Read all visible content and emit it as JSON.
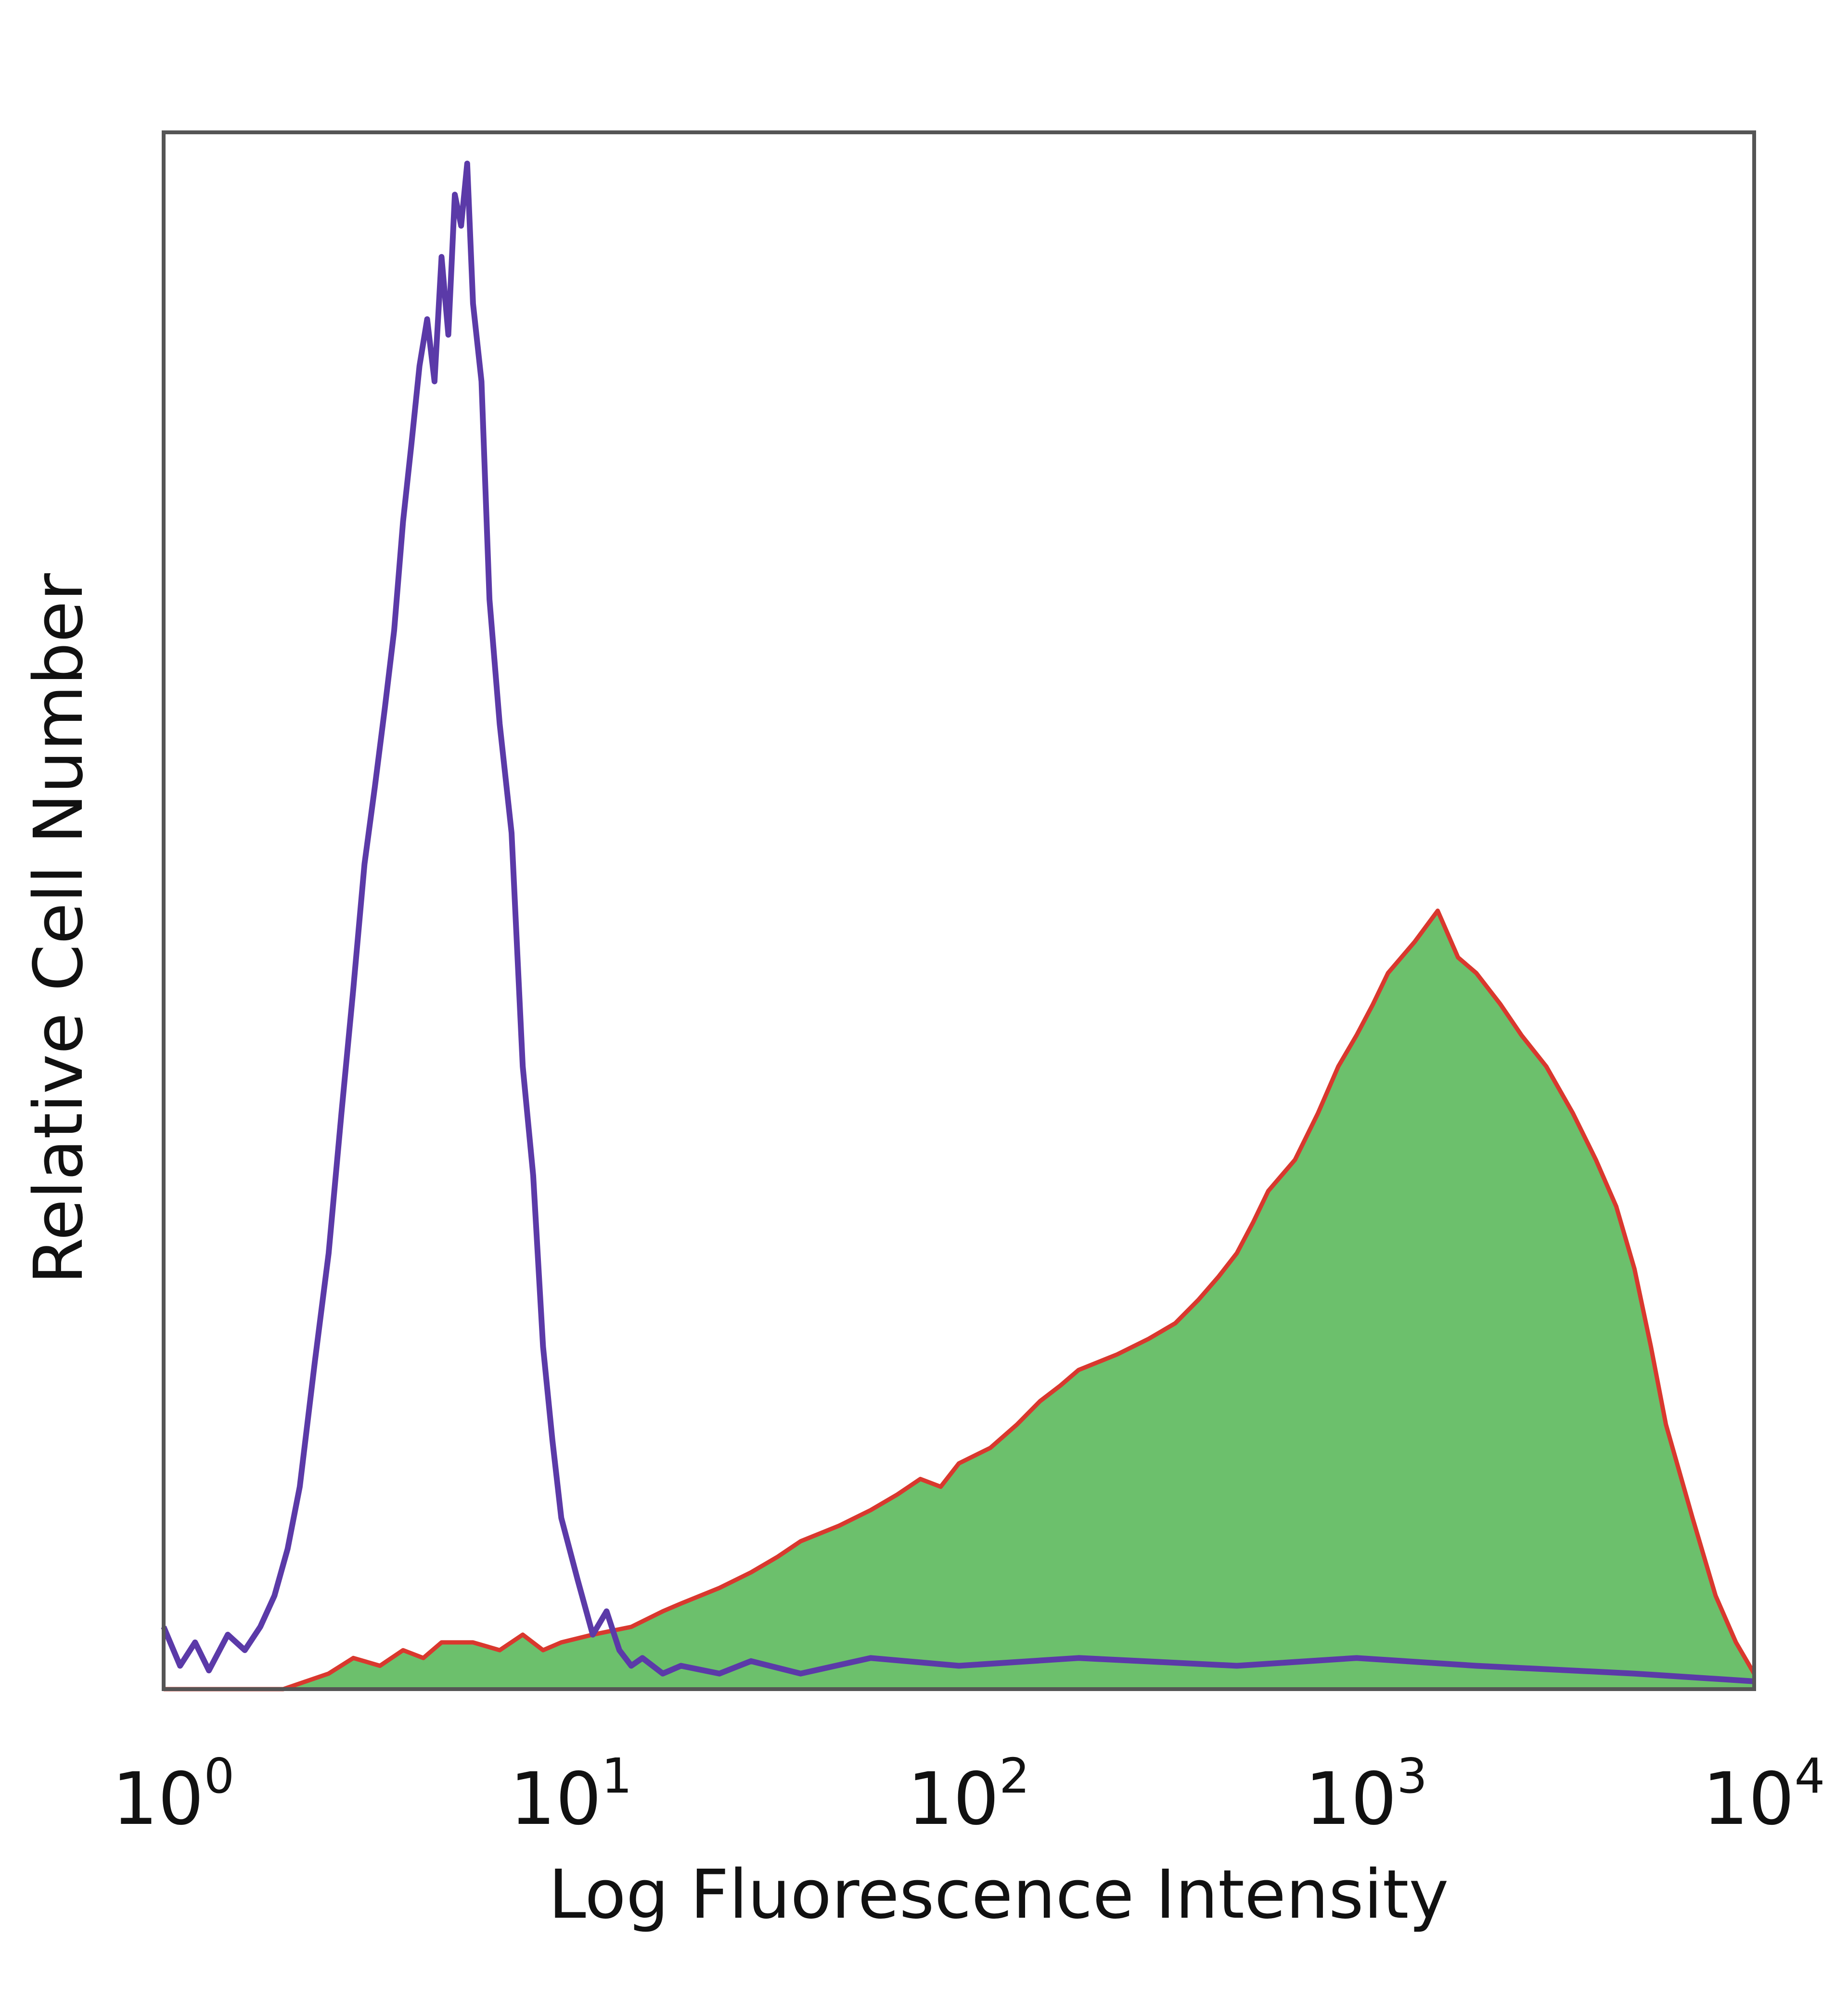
{
  "chart_data": {
    "type": "area",
    "xlabel": "Log Fluorescence Intensity",
    "ylabel": "Relative Cell Number",
    "x_scale": "log",
    "xlim": [
      1,
      10000
    ],
    "ylim": [
      0,
      100
    ],
    "x_ticks": [
      {
        "base": "10",
        "exp": "0",
        "value": 1
      },
      {
        "base": "10",
        "exp": "1",
        "value": 10
      },
      {
        "base": "10",
        "exp": "2",
        "value": 100
      },
      {
        "base": "10",
        "exp": "3",
        "value": 1000
      },
      {
        "base": "10",
        "exp": "4",
        "value": 10000
      }
    ],
    "grid": false,
    "legend": "none",
    "colors": {
      "control_line": "#5b3aa8",
      "stained_fill": "#6cc06c",
      "stained_line": "#d9382e",
      "frame": "#555555"
    },
    "series": [
      {
        "style": "line",
        "color": "#5b3aa8",
        "x": [
          1,
          1.1,
          1.2,
          1.3,
          1.45,
          1.6,
          1.75,
          1.9,
          2.05,
          2.2,
          2.4,
          2.6,
          2.8,
          3.0,
          3.2,
          3.4,
          3.6,
          3.8,
          4.0,
          4.2,
          4.4,
          4.6,
          4.8,
          5.0,
          5.2,
          5.4,
          5.6,
          5.8,
          6.0,
          6.3,
          6.6,
          7.0,
          7.5,
          8.0,
          8.5,
          9.0,
          9.5,
          10,
          11,
          12,
          13,
          14,
          15,
          16,
          18,
          20,
          25,
          30,
          40,
          60,
          100,
          200,
          500,
          1000,
          2000,
          5000,
          10000
        ],
        "y": [
          4,
          1.5,
          3,
          1.2,
          3.5,
          2.5,
          4,
          6,
          9,
          13,
          21,
          28,
          37,
          45,
          53,
          58,
          63,
          68,
          75,
          80,
          85,
          88,
          84,
          92,
          87,
          96,
          94,
          98,
          89,
          84,
          70,
          62,
          55,
          40,
          33,
          22,
          16,
          11,
          7,
          3.5,
          5,
          2.5,
          1.5,
          2,
          1,
          1.5,
          1,
          1.8,
          1,
          2,
          1.5,
          2,
          1.5,
          2,
          1.5,
          1,
          0.5
        ]
      },
      {
        "style": "filled",
        "fill": "#6cc06c",
        "color": "#d9382e",
        "x": [
          1,
          2,
          2.6,
          3,
          3.5,
          4,
          4.5,
          5,
          6,
          7,
          8,
          9,
          10,
          12,
          15,
          18,
          20,
          25,
          30,
          35,
          40,
          50,
          60,
          70,
          80,
          90,
          100,
          120,
          140,
          160,
          180,
          200,
          250,
          300,
          350,
          400,
          450,
          500,
          550,
          600,
          700,
          800,
          900,
          1000,
          1100,
          1200,
          1400,
          1600,
          1800,
          2000,
          2300,
          2600,
          3000,
          3500,
          4000,
          4500,
          5000,
          5500,
          6000,
          7000,
          8000,
          9000,
          10000
        ],
        "y": [
          0,
          0,
          1,
          2,
          1.5,
          2.5,
          2,
          3,
          3,
          2.5,
          3.5,
          2.5,
          3,
          3.5,
          4,
          5,
          5.5,
          6.5,
          7.5,
          8.5,
          9.5,
          10.5,
          11.5,
          12.5,
          13.5,
          13,
          14.5,
          15.5,
          17,
          18.5,
          19.5,
          20.5,
          21.5,
          22.5,
          23.5,
          25,
          26.5,
          28,
          30,
          32,
          34,
          37,
          40,
          42,
          44,
          46,
          48,
          50,
          47,
          46,
          44,
          42,
          40,
          37,
          34,
          31,
          27,
          22,
          17,
          11,
          6,
          3,
          1
        ]
      }
    ]
  }
}
